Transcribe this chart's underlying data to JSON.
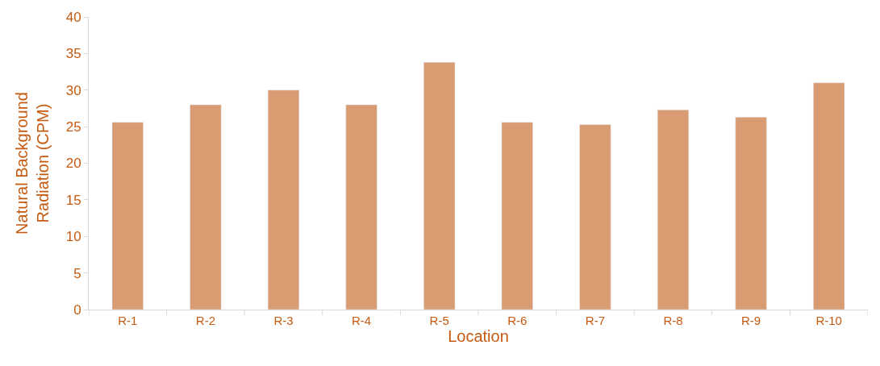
{
  "chart_data": {
    "type": "bar",
    "xlabel": "Location",
    "ylabel": "Natural Background\nRadiation (CPM)",
    "categories": [
      "R-1",
      "R-2",
      "R-3",
      "R-4",
      "R-5",
      "R-6",
      "R-7",
      "R-8",
      "R-9",
      "R-10"
    ],
    "values": [
      25.6,
      28,
      30,
      28,
      33.8,
      25.6,
      25.3,
      27.3,
      26.3,
      31
    ],
    "color": "#d99b72",
    "ylim": [
      0,
      40
    ],
    "yticks": [
      0,
      5,
      10,
      15,
      20,
      25,
      30,
      35,
      40
    ]
  }
}
